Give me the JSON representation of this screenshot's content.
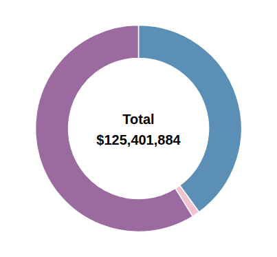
{
  "chart_data": {
    "type": "pie",
    "title": "Total",
    "subtitle": "$125,401,884",
    "values": [
      40.0,
      1.2,
      58.8
    ],
    "colors": [
      "#5b8fb5",
      "#f2c2d3",
      "#9b6ba0"
    ]
  }
}
